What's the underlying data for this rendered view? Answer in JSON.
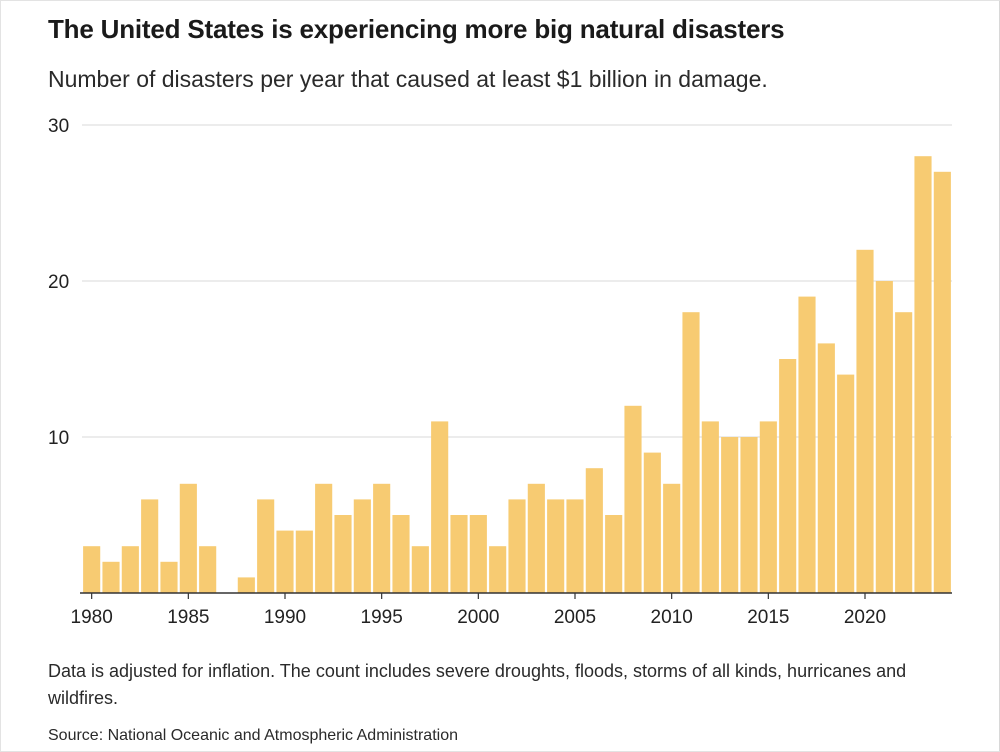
{
  "header": {
    "title": "The United States is experiencing more big natural disasters",
    "subtitle": "Number of disasters per year that caused at least $1 billion in damage."
  },
  "footer": {
    "note": "Data is adjusted for inflation. The count includes severe droughts, floods, storms of all kinds, hurricanes and wildfires.",
    "source": "Source: National Oceanic and Atmospheric Administration"
  },
  "colors": {
    "bar": "#f7cb72",
    "gridline": "#d9d9d9",
    "axis": "#333333",
    "text": "#222222"
  },
  "chart_data": {
    "type": "bar",
    "title": "The United States is experiencing more big natural disasters",
    "subtitle": "Number of disasters per year that caused at least $1 billion in damage.",
    "xlabel": "",
    "ylabel": "",
    "ylim": [
      0,
      30
    ],
    "yticks": [
      10,
      20,
      30
    ],
    "xticks": [
      1980,
      1985,
      1990,
      1995,
      2000,
      2005,
      2010,
      2015,
      2020
    ],
    "grid": true,
    "categories": [
      1980,
      1981,
      1982,
      1983,
      1984,
      1985,
      1986,
      1987,
      1988,
      1989,
      1990,
      1991,
      1992,
      1993,
      1994,
      1995,
      1996,
      1997,
      1998,
      1999,
      2000,
      2001,
      2002,
      2003,
      2004,
      2005,
      2006,
      2007,
      2008,
      2009,
      2010,
      2011,
      2012,
      2013,
      2014,
      2015,
      2016,
      2017,
      2018,
      2019,
      2020,
      2021,
      2022,
      2023,
      2024
    ],
    "values": [
      3,
      2,
      3,
      6,
      2,
      7,
      3,
      0,
      1,
      6,
      4,
      4,
      7,
      5,
      6,
      7,
      5,
      3,
      11,
      5,
      5,
      3,
      6,
      7,
      6,
      6,
      8,
      5,
      12,
      9,
      7,
      18,
      11,
      10,
      10,
      11,
      15,
      19,
      16,
      14,
      22,
      20,
      18,
      28,
      27
    ]
  }
}
